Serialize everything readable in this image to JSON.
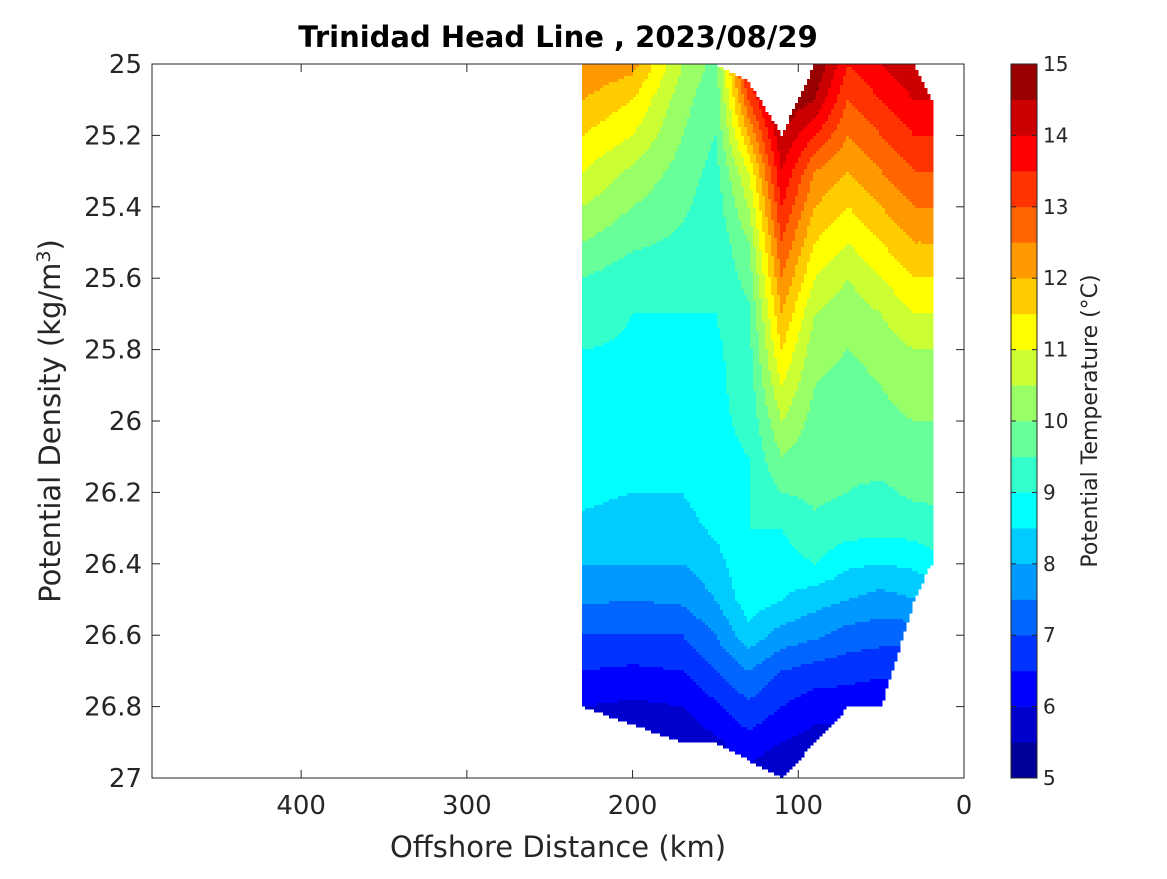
{
  "chart_data": {
    "type": "contour",
    "title": "Trinidad Head Line , 2023/08/29",
    "xlabel": "Offshore Distance (km)",
    "ylabel_main": "Potential Density (kg/m",
    "ylabel_sup": "3",
    "ylabel_close": ")",
    "colorbar_label": "Potential Temperature (°C)",
    "xlim": [
      490,
      0
    ],
    "ylim": [
      25,
      27
    ],
    "x_reversed": true,
    "y_reversed": true,
    "x_ticks": [
      400,
      300,
      200,
      100,
      0
    ],
    "x_tick_labels": [
      "400",
      "300",
      "200",
      "100",
      "0"
    ],
    "y_ticks": [
      25,
      25.2,
      25.4,
      25.6,
      25.8,
      26,
      26.2,
      26.4,
      26.6,
      26.8,
      27
    ],
    "y_tick_labels": [
      "25",
      "25.2",
      "25.4",
      "25.6",
      "25.8",
      "26",
      "26.2",
      "26.4",
      "26.6",
      "26.8",
      "27"
    ],
    "colorbar_ticks": [
      5,
      6,
      7,
      8,
      9,
      10,
      11,
      12,
      13,
      14,
      15
    ],
    "colorbar_tick_labels": [
      "5",
      "6",
      "7",
      "8",
      "9",
      "10",
      "11",
      "12",
      "13",
      "14",
      "15"
    ],
    "colorbar_range": [
      5,
      15
    ],
    "contour_step": 0.5,
    "colormap": "jet",
    "grid": false,
    "station_distances_km": [
      230,
      200,
      170,
      150,
      130,
      110,
      90,
      70,
      50,
      30,
      20
    ],
    "density_levels": [
      25,
      25.1,
      25.2,
      25.3,
      25.4,
      25.5,
      25.6,
      25.7,
      25.8,
      25.9,
      26,
      26.1,
      26.2,
      26.3,
      26.4,
      26.5,
      26.6,
      26.7,
      26.8,
      26.9,
      27
    ],
    "valid_density_range": [
      [
        25.0,
        26.8
      ],
      [
        25.0,
        26.85
      ],
      [
        25.0,
        26.9
      ],
      [
        25.0,
        26.9
      ],
      [
        25.05,
        26.95
      ],
      [
        25.2,
        27.0
      ],
      [
        25.0,
        26.9
      ],
      [
        25.0,
        26.8
      ],
      [
        25.0,
        26.8
      ],
      [
        25.0,
        26.5
      ],
      [
        25.1,
        26.4
      ]
    ],
    "potential_temperature": [
      [
        12.5,
        12.0,
        11.5,
        11.0,
        10.5,
        10.0,
        9.5,
        9.2,
        9.0,
        8.9,
        8.8,
        8.7,
        8.6,
        8.4,
        8.0,
        7.6,
        7.0,
        6.5,
        6.0,
        5.8,
        5.7
      ],
      [
        12.2,
        11.5,
        11.0,
        10.4,
        10.0,
        9.6,
        9.2,
        9.0,
        8.95,
        8.8,
        8.7,
        8.6,
        8.5,
        8.3,
        8.0,
        7.5,
        7.0,
        6.4,
        5.9,
        5.6,
        5.4
      ],
      [
        10.5,
        10.2,
        10.0,
        9.8,
        9.6,
        9.4,
        9.2,
        9.0,
        8.9,
        8.8,
        8.8,
        8.6,
        8.5,
        8.3,
        8.0,
        7.6,
        7.0,
        6.5,
        6.0,
        5.6,
        5.5
      ],
      [
        9.8,
        9.6,
        9.5,
        9.3,
        9.2,
        9.1,
        9.0,
        9.0,
        8.9,
        8.9,
        8.9,
        8.9,
        8.8,
        8.6,
        8.3,
        8.0,
        7.5,
        7.0,
        6.4,
        5.9,
        5.6
      ],
      [
        14.0,
        13.0,
        12.0,
        11.0,
        10.5,
        10.0,
        9.7,
        9.4,
        9.3,
        9.2,
        9.1,
        9.0,
        9.0,
        9.0,
        8.9,
        8.8,
        8.3,
        7.5,
        6.9,
        6.3,
        5.8
      ],
      [
        15.0,
        15.0,
        14.5,
        14.0,
        13.5,
        13.0,
        12.5,
        12.0,
        11.5,
        11.0,
        10.5,
        10.0,
        9.5,
        9.0,
        8.8,
        8.5,
        7.8,
        7.0,
        6.5,
        6.0,
        5.5
      ],
      [
        15.0,
        14.5,
        13.5,
        12.5,
        12.0,
        11.5,
        11.0,
        10.5,
        10.2,
        10.0,
        9.8,
        9.7,
        9.6,
        9.4,
        9.0,
        8.2,
        7.6,
        6.8,
        6.2,
        5.8,
        5.5
      ],
      [
        13.5,
        13.0,
        12.5,
        12.0,
        11.5,
        11.0,
        10.5,
        10.2,
        10.0,
        9.8,
        9.7,
        9.6,
        9.5,
        9.2,
        8.6,
        8.0,
        7.3,
        6.7,
        6.2,
        5.8,
        5.5
      ],
      [
        14.0,
        13.5,
        13.0,
        12.5,
        12.0,
        11.5,
        11.0,
        10.5,
        10.2,
        10.0,
        9.9,
        9.7,
        9.4,
        9.2,
        8.5,
        7.8,
        7.2,
        6.6,
        6.1,
        5.8,
        5.5
      ],
      [
        14.5,
        14.0,
        13.5,
        13.0,
        12.5,
        12.0,
        11.5,
        11.0,
        10.5,
        10.2,
        10.0,
        9.8,
        9.6,
        9.2,
        8.6,
        8.0,
        7.2,
        6.6,
        6.1,
        5.8,
        5.5
      ],
      [
        14.5,
        14.0,
        13.5,
        13.0,
        12.5,
        12.0,
        11.5,
        11.0,
        10.5,
        10.2,
        10.0,
        9.8,
        9.6,
        9.3,
        8.8,
        8.1,
        7.3,
        6.7,
        6.2,
        5.8,
        5.5
      ]
    ]
  }
}
